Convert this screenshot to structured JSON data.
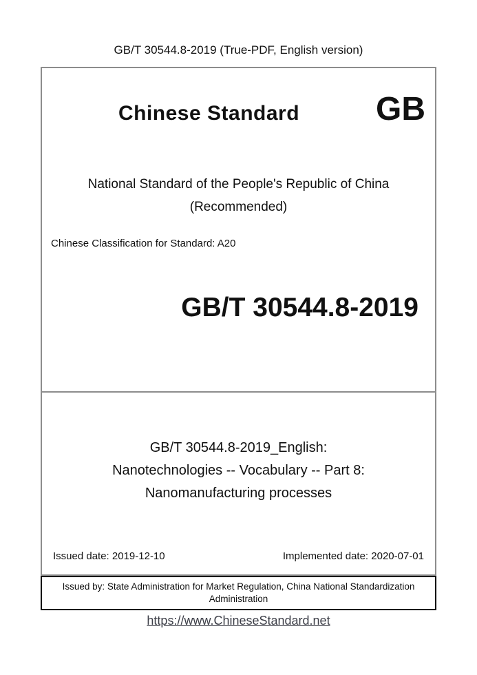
{
  "page": {
    "header_title": "GB/T 30544.8-2019 (True-PDF, English version)",
    "footer_link": "https://www.ChineseStandard.net"
  },
  "colors": {
    "background": "#ffffff",
    "text": "#111111",
    "box_border": "#8c8c8c",
    "issuer_box_border": "#000000",
    "link": "#3d3f48"
  },
  "cover": {
    "brand_title": "Chinese Standard",
    "gb_logo": "GB",
    "national_standard_line": "National Standard of the People's Republic of China",
    "recommended_line": "(Recommended)",
    "classification": "Chinese Classification for Standard: A20",
    "standard_code": "GB/T 30544.8-2019"
  },
  "title_block": {
    "line1": "GB/T 30544.8-2019_English:",
    "line2": "Nanotechnologies -- Vocabulary -- Part 8:",
    "line3": "Nanomanufacturing processes"
  },
  "dates": {
    "issued": "Issued date: 2019-12-10",
    "implemented": "Implemented date: 2020-07-01"
  },
  "issuer": {
    "line1": "Issued by: State Administration for Market Regulation, China National Standardization",
    "line2": "Administration"
  }
}
